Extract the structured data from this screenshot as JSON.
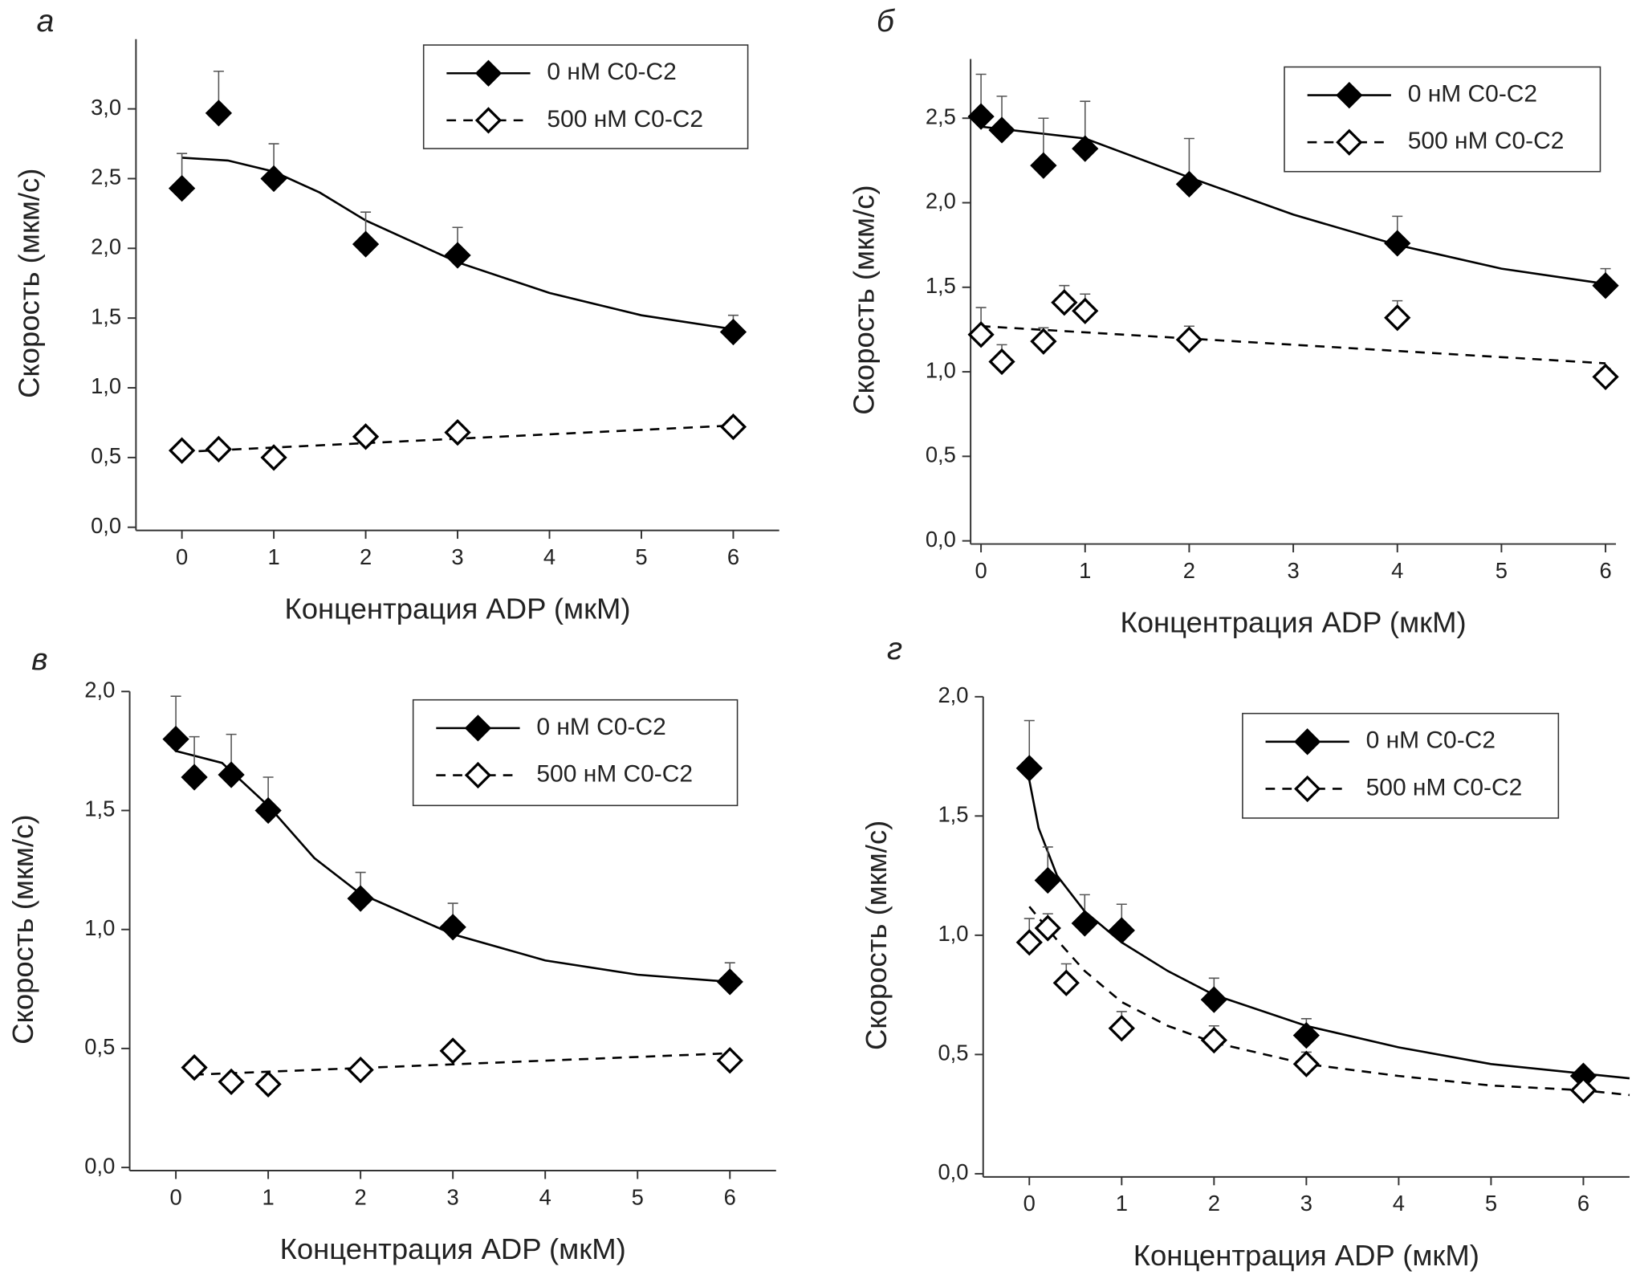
{
  "chart_data": [
    {
      "type": "scatter",
      "title": "а",
      "x_label": "Концентрация ADP (мкМ)",
      "y_label": "Скорость (мкм/с)",
      "xlim": [
        -0.5,
        6.5
      ],
      "xticks": [
        0,
        1,
        2,
        3,
        4,
        5,
        6
      ],
      "ylim": [
        0,
        3.5
      ],
      "yticks": [
        {
          "value": 0,
          "label": "0,0"
        },
        {
          "value": 0.5,
          "label": "0,5"
        },
        {
          "value": 1,
          "label": "1,0"
        },
        {
          "value": 1.5,
          "label": "1,5"
        },
        {
          "value": 2,
          "label": "2,0"
        },
        {
          "value": 2.5,
          "label": "2,5"
        },
        {
          "value": 3,
          "label": "3,0"
        }
      ],
      "legend": "upper right",
      "series": [
        {
          "name": "0 нМ C0-C2",
          "color": "#000000",
          "marker_fill": "#000000",
          "line_style": "solid",
          "x": [
            0,
            0.4,
            1,
            2,
            3,
            6
          ],
          "values": [
            2.43,
            2.97,
            2.5,
            2.03,
            1.95,
            1.4
          ],
          "errors": [
            0.25,
            0.3,
            0.25,
            0.23,
            0.2,
            0.12
          ],
          "fit": {
            "x": [
              0,
              0.5,
              1,
              1.5,
              2,
              3,
              4,
              5,
              6
            ],
            "values": [
              2.65,
              2.63,
              2.55,
              2.4,
              2.2,
              1.9,
              1.68,
              1.52,
              1.42
            ]
          }
        },
        {
          "name": "500 нМ C0-C2",
          "color": "#000000",
          "marker_fill": "#ffffff",
          "line_style": "dashed",
          "x": [
            0,
            0.4,
            1,
            2,
            3,
            6
          ],
          "values": [
            0.55,
            0.56,
            0.5,
            0.65,
            0.68,
            0.72
          ],
          "errors": [
            0.05,
            0.04,
            0.04,
            0.06,
            0.05,
            0.04
          ],
          "fit": {
            "x": [
              0,
              6
            ],
            "values": [
              0.54,
              0.73
            ]
          }
        }
      ]
    },
    {
      "type": "scatter",
      "title": "б",
      "x_label": "Концентрация ADP (мкМ)",
      "y_label": "Скорость (мкм/с)",
      "xlim": [
        -0.1,
        6.1
      ],
      "xticks": [
        0,
        1,
        2,
        3,
        4,
        5,
        6
      ],
      "ylim": [
        0,
        2.85
      ],
      "yticks": [
        {
          "value": 0,
          "label": "0,0"
        },
        {
          "value": 0.5,
          "label": "0,5"
        },
        {
          "value": 1,
          "label": "1,0"
        },
        {
          "value": 1.5,
          "label": "1,5"
        },
        {
          "value": 2,
          "label": "2,0"
        },
        {
          "value": 2.5,
          "label": "2,5"
        }
      ],
      "legend": "upper right",
      "series": [
        {
          "name": "0 нМ C0-C2",
          "color": "#000000",
          "marker_fill": "#000000",
          "line_style": "solid",
          "x": [
            0,
            0.2,
            0.6,
            1,
            2,
            4,
            6
          ],
          "values": [
            2.51,
            2.43,
            2.22,
            2.32,
            2.11,
            1.76,
            1.51
          ],
          "errors": [
            0.25,
            0.2,
            0.28,
            0.28,
            0.27,
            0.16,
            0.1
          ],
          "fit": {
            "x": [
              0,
              1,
              2,
              3,
              4,
              5,
              6
            ],
            "values": [
              2.45,
              2.38,
              2.15,
              1.93,
              1.75,
              1.61,
              1.52
            ]
          }
        },
        {
          "name": "500 нМ C0-C2",
          "color": "#000000",
          "marker_fill": "#ffffff",
          "line_style": "dashed",
          "x": [
            0,
            0.2,
            0.6,
            0.8,
            1,
            2,
            4,
            6
          ],
          "values": [
            1.22,
            1.06,
            1.18,
            1.41,
            1.36,
            1.19,
            1.32,
            0.97
          ],
          "errors": [
            0.16,
            0.1,
            0.08,
            0.1,
            0.1,
            0.08,
            0.1,
            0.05
          ],
          "fit": {
            "x": [
              0,
              6
            ],
            "values": [
              1.27,
              1.05
            ]
          }
        }
      ]
    },
    {
      "type": "scatter",
      "title": "в",
      "x_label": "Концентрация ADP (мкМ)",
      "y_label": "Скорость (мкм/с)",
      "xlim": [
        -0.5,
        6.5
      ],
      "xticks": [
        0,
        1,
        2,
        3,
        4,
        5,
        6
      ],
      "ylim": [
        0,
        2
      ],
      "yticks": [
        {
          "value": 0,
          "label": "0,0"
        },
        {
          "value": 0.5,
          "label": "0,5"
        },
        {
          "value": 1,
          "label": "1,0"
        },
        {
          "value": 1.5,
          "label": "1,5"
        },
        {
          "value": 2,
          "label": "2,0"
        }
      ],
      "legend": "upper right",
      "series": [
        {
          "name": "0 нМ C0-C2",
          "color": "#000000",
          "marker_fill": "#000000",
          "line_style": "solid",
          "x": [
            0,
            0.2,
            0.6,
            1,
            2,
            3,
            6
          ],
          "values": [
            1.8,
            1.64,
            1.65,
            1.5,
            1.13,
            1.01,
            0.78
          ],
          "errors": [
            0.18,
            0.17,
            0.17,
            0.14,
            0.11,
            0.1,
            0.08
          ],
          "fit": {
            "x": [
              0,
              0.5,
              1,
              1.5,
              2,
              3,
              4,
              5,
              6
            ],
            "values": [
              1.75,
              1.7,
              1.52,
              1.3,
              1.15,
              0.98,
              0.87,
              0.81,
              0.78
            ]
          }
        },
        {
          "name": "500 нМ C0-C2",
          "color": "#000000",
          "marker_fill": "#ffffff",
          "line_style": "dashed",
          "x": [
            0.2,
            0.6,
            1,
            2,
            3,
            6
          ],
          "values": [
            0.42,
            0.36,
            0.35,
            0.41,
            0.49,
            0.45
          ],
          "errors": [
            0.02,
            0.02,
            0.02,
            0.02,
            0.02,
            0.02
          ],
          "fit": {
            "x": [
              0.2,
              6
            ],
            "values": [
              0.39,
              0.48
            ]
          }
        }
      ]
    },
    {
      "type": "scatter",
      "title": "г",
      "x_label": "Концентрация ADP (мкМ)",
      "y_label": "Скорость (мкм/с)",
      "xlim": [
        -0.5,
        6.5
      ],
      "xticks": [
        0,
        1,
        2,
        3,
        4,
        5,
        6
      ],
      "ylim": [
        0,
        2
      ],
      "yticks": [
        {
          "value": 0,
          "label": "0,0"
        },
        {
          "value": 0.5,
          "label": "0,5"
        },
        {
          "value": 1,
          "label": "1,0"
        },
        {
          "value": 1.5,
          "label": "1,5"
        },
        {
          "value": 2,
          "label": "2,0"
        }
      ],
      "legend": "upper right",
      "series": [
        {
          "name": "0 нМ C0-C2",
          "color": "#000000",
          "marker_fill": "#000000",
          "line_style": "solid",
          "x": [
            0,
            0.2,
            0.6,
            1,
            2,
            3,
            6
          ],
          "values": [
            1.7,
            1.23,
            1.05,
            1.02,
            0.73,
            0.58,
            0.41
          ],
          "errors": [
            0.2,
            0.14,
            0.12,
            0.11,
            0.09,
            0.07,
            0.03
          ],
          "fit": {
            "x": [
              0,
              0.1,
              0.3,
              0.6,
              1,
              1.5,
              2,
              3,
              4,
              5,
              6,
              6.5
            ],
            "values": [
              1.65,
              1.45,
              1.25,
              1.1,
              0.97,
              0.85,
              0.75,
              0.62,
              0.53,
              0.46,
              0.42,
              0.4
            ]
          }
        },
        {
          "name": "500 нМ C0-C2",
          "color": "#000000",
          "marker_fill": "#ffffff",
          "line_style": "dashed",
          "x": [
            0,
            0.2,
            0.4,
            1,
            2,
            3,
            6
          ],
          "values": [
            0.97,
            1.03,
            0.8,
            0.61,
            0.56,
            0.46,
            0.35
          ],
          "errors": [
            0.1,
            0.06,
            0.08,
            0.07,
            0.06,
            0.05,
            0.03
          ],
          "fit": {
            "x": [
              0,
              0.3,
              0.6,
              1,
              1.5,
              2,
              3,
              4,
              5,
              6,
              6.5
            ],
            "values": [
              1.12,
              0.98,
              0.85,
              0.72,
              0.62,
              0.55,
              0.46,
              0.41,
              0.37,
              0.35,
              0.33
            ]
          }
        }
      ]
    }
  ]
}
